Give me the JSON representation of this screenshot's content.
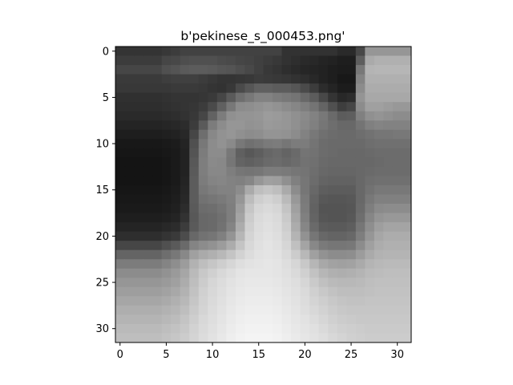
{
  "chart_data": {
    "type": "heatmap",
    "title": "b'pekinese_s_000453.png'",
    "xlabel": "",
    "ylabel": "",
    "xlim": [
      -0.5,
      31.5
    ],
    "ylim": [
      31.5,
      -0.5
    ],
    "x_ticks": [
      0,
      5,
      10,
      15,
      20,
      25,
      30
    ],
    "y_ticks": [
      0,
      5,
      10,
      15,
      20,
      25,
      30
    ],
    "x_tick_labels": [
      "0",
      "5",
      "10",
      "15",
      "20",
      "25",
      "30"
    ],
    "y_tick_labels": [
      "0",
      "5",
      "10",
      "15",
      "20",
      "25",
      "30"
    ],
    "colormap": "gray",
    "grid": false,
    "rows": 32,
    "cols": 32,
    "pixels": [
      [
        52,
        52,
        52,
        52,
        52,
        56,
        60,
        66,
        66,
        66,
        66,
        66,
        66,
        66,
        66,
        66,
        66,
        66,
        50,
        50,
        50,
        50,
        50,
        50,
        42,
        42,
        72,
        150,
        150,
        150,
        150,
        150
      ],
      [
        60,
        60,
        60,
        60,
        60,
        70,
        72,
        78,
        80,
        80,
        80,
        76,
        74,
        70,
        68,
        64,
        60,
        56,
        50,
        46,
        42,
        40,
        36,
        34,
        30,
        30,
        94,
        170,
        176,
        176,
        176,
        176
      ],
      [
        70,
        70,
        70,
        70,
        70,
        80,
        84,
        90,
        92,
        92,
        90,
        86,
        84,
        78,
        72,
        64,
        56,
        52,
        46,
        42,
        38,
        36,
        34,
        30,
        28,
        28,
        120,
        180,
        182,
        182,
        182,
        182
      ],
      [
        58,
        58,
        58,
        58,
        58,
        62,
        64,
        64,
        64,
        60,
        56,
        52,
        52,
        54,
        56,
        60,
        58,
        56,
        54,
        50,
        46,
        40,
        34,
        30,
        24,
        24,
        132,
        176,
        176,
        176,
        176,
        176
      ],
      [
        56,
        56,
        56,
        56,
        56,
        56,
        58,
        58,
        58,
        56,
        52,
        50,
        56,
        74,
        86,
        96,
        96,
        92,
        92,
        86,
        74,
        60,
        44,
        36,
        28,
        28,
        140,
        172,
        172,
        172,
        172,
        172
      ],
      [
        48,
        48,
        48,
        48,
        48,
        50,
        52,
        52,
        52,
        54,
        58,
        70,
        90,
        110,
        120,
        130,
        130,
        124,
        120,
        116,
        104,
        92,
        72,
        52,
        40,
        44,
        148,
        168,
        168,
        168,
        168,
        168
      ],
      [
        46,
        46,
        46,
        46,
        46,
        48,
        50,
        52,
        54,
        60,
        74,
        96,
        120,
        140,
        142,
        146,
        150,
        146,
        140,
        134,
        126,
        116,
        100,
        80,
        62,
        70,
        140,
        160,
        160,
        156,
        152,
        152
      ],
      [
        42,
        42,
        42,
        42,
        42,
        44,
        46,
        50,
        56,
        70,
        98,
        124,
        144,
        148,
        148,
        150,
        156,
        154,
        150,
        144,
        138,
        130,
        120,
        106,
        92,
        94,
        128,
        144,
        148,
        144,
        140,
        140
      ],
      [
        36,
        36,
        36,
        36,
        36,
        38,
        40,
        44,
        60,
        90,
        124,
        140,
        150,
        150,
        146,
        148,
        154,
        152,
        150,
        144,
        136,
        128,
        118,
        110,
        104,
        104,
        116,
        128,
        132,
        130,
        130,
        130
      ],
      [
        30,
        30,
        30,
        30,
        30,
        32,
        34,
        40,
        70,
        110,
        136,
        146,
        150,
        144,
        140,
        142,
        148,
        148,
        146,
        140,
        130,
        120,
        112,
        108,
        106,
        106,
        110,
        114,
        118,
        118,
        120,
        120
      ],
      [
        24,
        24,
        24,
        24,
        24,
        26,
        28,
        36,
        80,
        120,
        140,
        146,
        138,
        120,
        112,
        116,
        122,
        124,
        118,
        124,
        124,
        116,
        108,
        106,
        106,
        106,
        106,
        110,
        112,
        112,
        112,
        112
      ],
      [
        22,
        22,
        22,
        22,
        22,
        24,
        26,
        34,
        84,
        124,
        140,
        140,
        120,
        96,
        88,
        94,
        102,
        106,
        100,
        106,
        116,
        114,
        108,
        106,
        104,
        104,
        104,
        106,
        108,
        108,
        108,
        108
      ],
      [
        20,
        20,
        20,
        20,
        20,
        22,
        26,
        34,
        88,
        126,
        138,
        136,
        118,
        100,
        96,
        100,
        106,
        108,
        104,
        108,
        114,
        112,
        106,
        104,
        104,
        104,
        104,
        104,
        106,
        108,
        108,
        108
      ],
      [
        20,
        20,
        20,
        20,
        20,
        22,
        26,
        34,
        90,
        126,
        136,
        136,
        126,
        118,
        116,
        118,
        124,
        124,
        122,
        118,
        116,
        110,
        104,
        102,
        102,
        102,
        104,
        106,
        108,
        108,
        108,
        108
      ],
      [
        20,
        20,
        20,
        20,
        20,
        22,
        26,
        36,
        92,
        124,
        132,
        134,
        130,
        128,
        134,
        150,
        160,
        158,
        144,
        128,
        118,
        108,
        100,
        98,
        98,
        98,
        104,
        110,
        112,
        112,
        112,
        112
      ],
      [
        22,
        22,
        22,
        22,
        22,
        24,
        28,
        38,
        92,
        120,
        126,
        130,
        130,
        140,
        170,
        190,
        196,
        190,
        170,
        140,
        118,
        104,
        94,
        92,
        92,
        92,
        104,
        114,
        120,
        120,
        120,
        120
      ],
      [
        24,
        24,
        24,
        24,
        24,
        26,
        30,
        40,
        92,
        114,
        118,
        122,
        128,
        150,
        188,
        206,
        212,
        206,
        186,
        152,
        122,
        100,
        88,
        86,
        86,
        88,
        104,
        120,
        128,
        128,
        128,
        128
      ],
      [
        26,
        26,
        26,
        26,
        26,
        28,
        32,
        44,
        90,
        108,
        110,
        116,
        126,
        158,
        198,
        214,
        218,
        214,
        196,
        160,
        124,
        98,
        84,
        84,
        84,
        86,
        106,
        126,
        138,
        140,
        140,
        140
      ],
      [
        30,
        30,
        30,
        30,
        30,
        32,
        36,
        50,
        88,
        104,
        106,
        112,
        126,
        164,
        204,
        218,
        222,
        218,
        202,
        166,
        128,
        100,
        86,
        84,
        84,
        88,
        110,
        134,
        148,
        152,
        152,
        152
      ],
      [
        36,
        36,
        36,
        36,
        36,
        40,
        44,
        60,
        90,
        104,
        106,
        114,
        132,
        172,
        208,
        220,
        224,
        220,
        206,
        172,
        134,
        106,
        92,
        90,
        90,
        94,
        118,
        142,
        158,
        164,
        164,
        164
      ],
      [
        46,
        46,
        46,
        46,
        46,
        52,
        58,
        76,
        104,
        114,
        118,
        128,
        148,
        182,
        212,
        222,
        226,
        222,
        210,
        180,
        146,
        118,
        104,
        100,
        100,
        104,
        126,
        150,
        166,
        172,
        172,
        172
      ],
      [
        70,
        70,
        70,
        70,
        70,
        80,
        90,
        106,
        132,
        140,
        146,
        156,
        172,
        196,
        216,
        224,
        228,
        224,
        214,
        192,
        164,
        136,
        122,
        118,
        118,
        120,
        140,
        160,
        172,
        176,
        176,
        176
      ],
      [
        100,
        100,
        100,
        100,
        100,
        110,
        120,
        136,
        160,
        170,
        176,
        184,
        196,
        210,
        220,
        226,
        228,
        226,
        218,
        204,
        184,
        160,
        146,
        140,
        140,
        142,
        156,
        170,
        178,
        180,
        180,
        180
      ],
      [
        124,
        124,
        124,
        124,
        124,
        132,
        142,
        156,
        178,
        190,
        198,
        206,
        214,
        222,
        226,
        228,
        230,
        228,
        222,
        214,
        200,
        182,
        168,
        162,
        160,
        162,
        170,
        180,
        184,
        186,
        186,
        186
      ],
      [
        140,
        140,
        140,
        140,
        140,
        146,
        154,
        166,
        186,
        200,
        208,
        216,
        222,
        228,
        230,
        230,
        230,
        228,
        224,
        218,
        208,
        194,
        182,
        176,
        174,
        176,
        180,
        186,
        188,
        190,
        190,
        190
      ],
      [
        150,
        150,
        150,
        150,
        150,
        154,
        160,
        172,
        190,
        204,
        214,
        220,
        226,
        230,
        232,
        232,
        232,
        230,
        226,
        222,
        214,
        202,
        192,
        186,
        184,
        184,
        186,
        190,
        192,
        192,
        192,
        192
      ],
      [
        158,
        158,
        158,
        158,
        158,
        162,
        168,
        178,
        194,
        208,
        216,
        222,
        228,
        232,
        234,
        234,
        234,
        232,
        228,
        224,
        218,
        208,
        200,
        194,
        190,
        190,
        190,
        192,
        194,
        194,
        194,
        194
      ],
      [
        166,
        166,
        166,
        166,
        166,
        170,
        176,
        184,
        198,
        210,
        218,
        224,
        230,
        234,
        236,
        236,
        236,
        234,
        230,
        226,
        220,
        212,
        206,
        200,
        196,
        194,
        194,
        196,
        196,
        196,
        196,
        196
      ],
      [
        174,
        174,
        174,
        174,
        174,
        178,
        182,
        190,
        202,
        212,
        220,
        226,
        232,
        236,
        238,
        238,
        238,
        236,
        232,
        228,
        222,
        216,
        210,
        204,
        200,
        198,
        198,
        198,
        198,
        198,
        198,
        198
      ],
      [
        180,
        180,
        180,
        180,
        180,
        184,
        188,
        196,
        206,
        216,
        222,
        228,
        234,
        238,
        240,
        240,
        240,
        238,
        234,
        230,
        226,
        220,
        214,
        208,
        204,
        202,
        200,
        200,
        200,
        200,
        200,
        200
      ],
      [
        186,
        186,
        186,
        186,
        186,
        190,
        194,
        200,
        210,
        218,
        224,
        230,
        236,
        240,
        242,
        242,
        242,
        240,
        236,
        232,
        228,
        224,
        218,
        212,
        208,
        206,
        204,
        202,
        202,
        202,
        202,
        202
      ],
      [
        190,
        190,
        190,
        190,
        190,
        194,
        198,
        204,
        212,
        220,
        226,
        232,
        238,
        242,
        244,
        244,
        244,
        242,
        238,
        234,
        230,
        226,
        222,
        216,
        212,
        208,
        206,
        204,
        204,
        204,
        204,
        204
      ]
    ]
  }
}
